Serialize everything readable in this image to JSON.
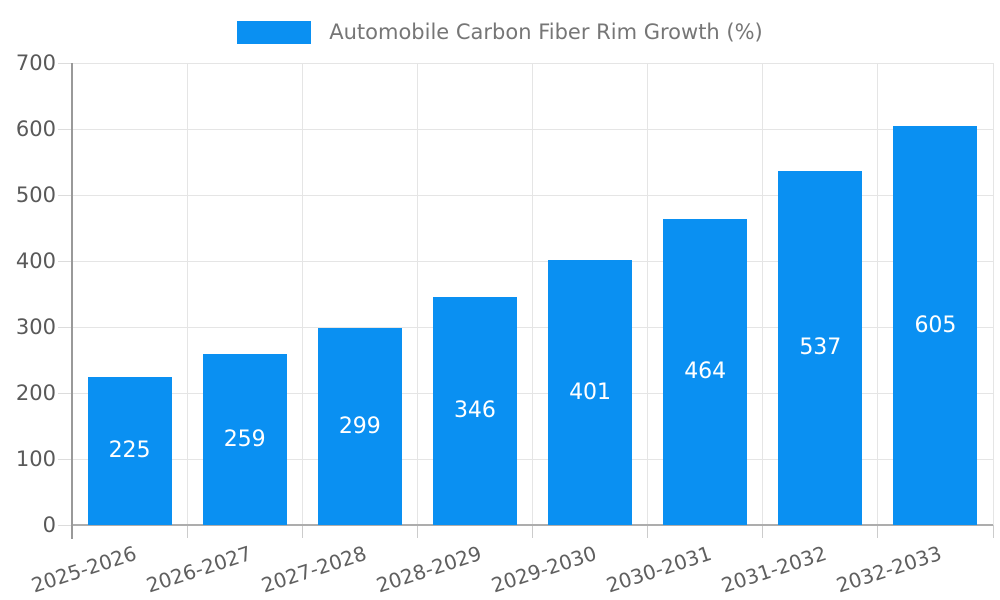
{
  "legend": {
    "label": "Automobile Carbon Fiber Rim Growth (%)"
  },
  "chart_data": {
    "type": "bar",
    "title": "Automobile Carbon Fiber Rim Growth (%)",
    "legend_entries": [
      "Automobile Carbon Fiber Rim Growth (%)"
    ],
    "categories": [
      "2025-2026",
      "2026-2027",
      "2027-2028",
      "2028-2029",
      "2029-2030",
      "2030-2031",
      "2031-2032",
      "2032-2033"
    ],
    "values": [
      225,
      259,
      299,
      346,
      401,
      464,
      537,
      605
    ],
    "yticks": [
      0,
      100,
      200,
      300,
      400,
      500,
      600,
      700
    ],
    "xlabel": "",
    "ylabel": "",
    "ylim": [
      0,
      700
    ],
    "ytick_interval": 100,
    "grid": true,
    "legend_position": "top",
    "x_label_rotation_deg": -18,
    "colors": {
      "bar": "#0a90f2",
      "value_label": "#ffffff",
      "axis_text": "#595959",
      "legend_text": "#767676",
      "gridline": "#e5e5e5",
      "axis_line": "#999999",
      "background": "#ffffff"
    }
  }
}
